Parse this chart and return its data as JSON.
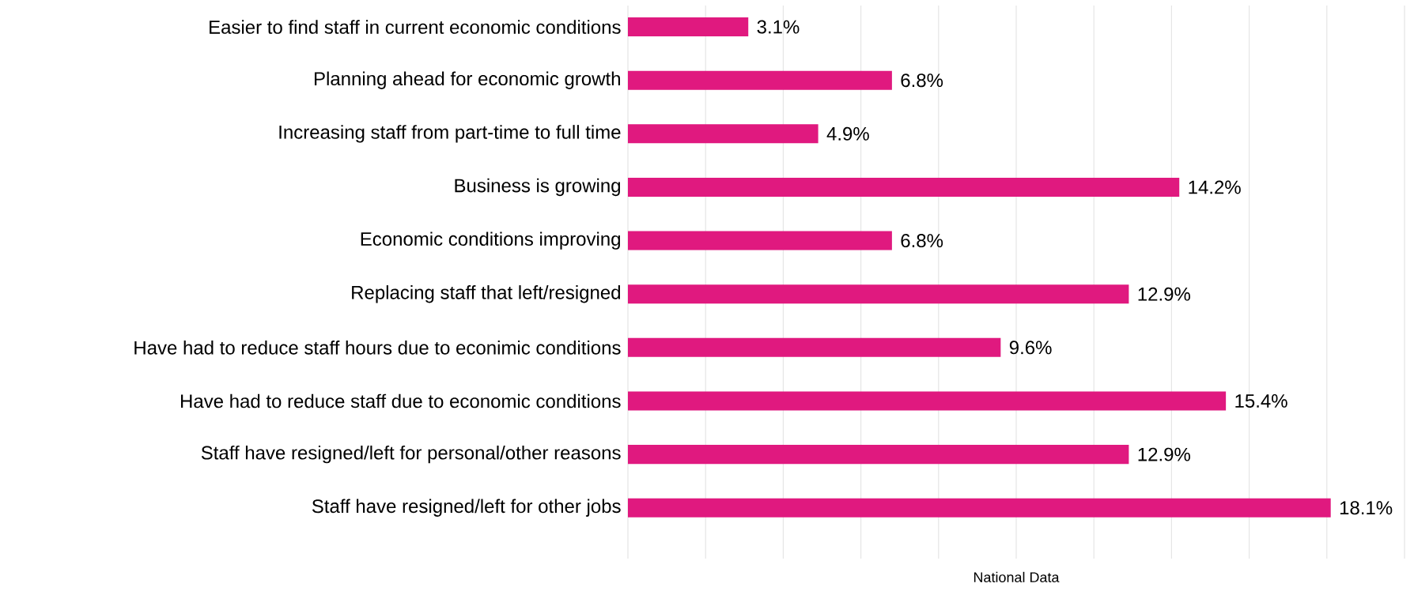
{
  "chart_data": {
    "type": "bar",
    "orientation": "horizontal",
    "xlabel": "National Data",
    "categories": [
      "Easier to find staff in current economic conditions",
      "Planning ahead for economic growth",
      "Increasing staff from part-time to full time",
      "Business is growing",
      "Economic conditions improving",
      "Replacing staff that left/resigned",
      "Have had to reduce staff hours due to econimic conditions",
      "Have had to reduce staff due to economic conditions",
      "Staff have resigned/left for personal/other reasons",
      "Staff have resigned/left for other jobs"
    ],
    "values": [
      3.1,
      6.8,
      4.9,
      14.2,
      6.8,
      12.9,
      9.6,
      15.4,
      12.9,
      18.1
    ],
    "value_labels": [
      "3.1%",
      "6.8%",
      "4.9%",
      "14.2%",
      "6.8%",
      "12.9%",
      "9.6%",
      "15.4%",
      "12.9%",
      "18.1%"
    ],
    "color": "#e0197f",
    "xlim": [
      0,
      20
    ],
    "xticks": [
      {
        "value": 0,
        "label": null
      },
      {
        "value": 2,
        "label": null
      },
      {
        "value": 4,
        "label": null
      },
      {
        "value": 6,
        "label": null
      },
      {
        "value": 8,
        "label": null
      },
      {
        "value": 10,
        "label": null
      },
      {
        "value": 12,
        "label": null
      },
      {
        "value": 14,
        "label": null
      },
      {
        "value": 16,
        "label": null
      },
      {
        "value": 18,
        "label": null
      },
      {
        "value": 20,
        "label": null
      }
    ],
    "grid": "x"
  }
}
